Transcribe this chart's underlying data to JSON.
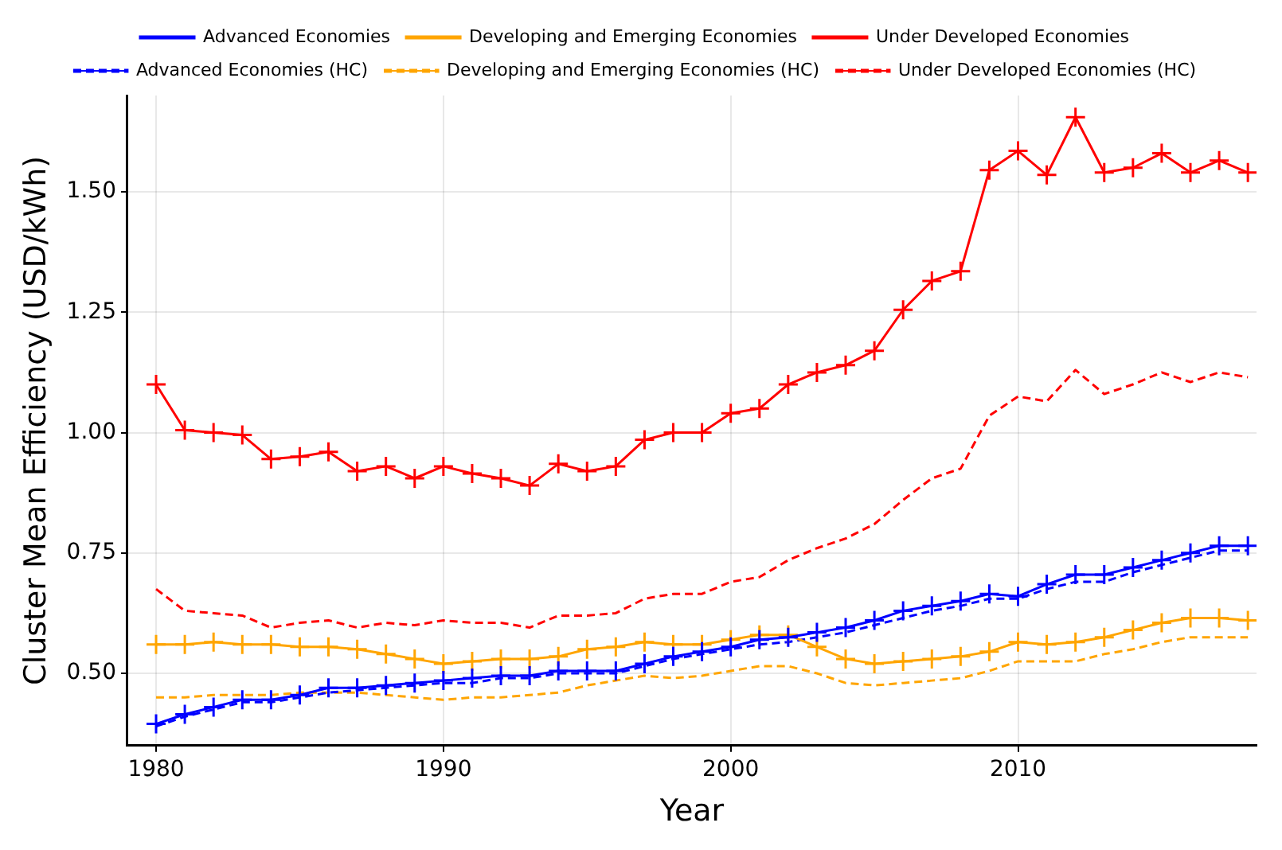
{
  "chart_data": {
    "type": "line",
    "xlabel": "Year",
    "ylabel": "Cluster Mean Efficiency (USD/kWh)",
    "x": [
      1980,
      1981,
      1982,
      1983,
      1984,
      1985,
      1986,
      1987,
      1988,
      1989,
      1990,
      1991,
      1992,
      1993,
      1994,
      1995,
      1996,
      1997,
      1998,
      1999,
      2000,
      2001,
      2002,
      2003,
      2004,
      2005,
      2006,
      2007,
      2008,
      2009,
      2010,
      2011,
      2012,
      2013,
      2014,
      2015,
      2016,
      2017,
      2018
    ],
    "xlim": [
      1979,
      2018.3
    ],
    "xticks": [
      1980,
      1990,
      2000,
      2010
    ],
    "ylim": [
      0.35,
      1.7
    ],
    "yticks": [
      {
        "value": 0.5,
        "label": "0.50"
      },
      {
        "value": 0.75,
        "label": "0.75"
      },
      {
        "value": 1.0,
        "label": "1.00"
      },
      {
        "value": 1.25,
        "label": "1.25"
      },
      {
        "value": 1.5,
        "label": "1.50"
      }
    ],
    "grid": true,
    "legend": "top",
    "series": [
      {
        "name": "Advanced Economies",
        "color": "#0000ff",
        "marker": "cross",
        "line_style": "solid",
        "values": [
          0.395,
          0.415,
          0.43,
          0.445,
          0.445,
          0.455,
          0.47,
          0.47,
          0.475,
          0.48,
          0.485,
          0.49,
          0.495,
          0.495,
          0.505,
          0.505,
          0.505,
          0.52,
          0.535,
          0.545,
          0.555,
          0.57,
          0.575,
          0.585,
          0.595,
          0.61,
          0.63,
          0.64,
          0.65,
          0.665,
          0.66,
          0.685,
          0.705,
          0.705,
          0.72,
          0.735,
          0.75,
          0.765,
          0.765
        ]
      },
      {
        "name": "Developing and Emerging Economies",
        "color": "#ffa500",
        "marker": "cross",
        "line_style": "solid",
        "values": [
          0.56,
          0.56,
          0.565,
          0.56,
          0.56,
          0.555,
          0.555,
          0.55,
          0.54,
          0.53,
          0.52,
          0.525,
          0.53,
          0.53,
          0.535,
          0.55,
          0.555,
          0.565,
          0.56,
          0.56,
          0.57,
          0.58,
          0.58,
          0.555,
          0.53,
          0.52,
          0.525,
          0.53,
          0.535,
          0.545,
          0.565,
          0.56,
          0.565,
          0.575,
          0.59,
          0.605,
          0.615,
          0.615,
          0.61
        ]
      },
      {
        "name": "Under Developed Economies",
        "color": "#ff0000",
        "marker": "cross",
        "line_style": "solid",
        "values": [
          1.1,
          1.005,
          1.0,
          0.995,
          0.945,
          0.95,
          0.96,
          0.92,
          0.93,
          0.905,
          0.93,
          0.915,
          0.905,
          0.89,
          0.935,
          0.92,
          0.93,
          0.985,
          1.0,
          1.0,
          1.04,
          1.05,
          1.1,
          1.125,
          1.14,
          1.17,
          1.255,
          1.315,
          1.335,
          1.545,
          1.585,
          1.535,
          1.655,
          1.54,
          1.55,
          1.58,
          1.54,
          1.565,
          1.54
        ]
      },
      {
        "name": "Advanced Economies (HC)",
        "color": "#0000ff",
        "marker": "none",
        "line_style": "dashed",
        "values": [
          0.39,
          0.41,
          0.425,
          0.44,
          0.44,
          0.45,
          0.46,
          0.465,
          0.47,
          0.475,
          0.48,
          0.48,
          0.49,
          0.49,
          0.5,
          0.5,
          0.5,
          0.515,
          0.53,
          0.54,
          0.55,
          0.56,
          0.565,
          0.575,
          0.585,
          0.6,
          0.615,
          0.63,
          0.64,
          0.655,
          0.655,
          0.675,
          0.69,
          0.69,
          0.71,
          0.725,
          0.74,
          0.755,
          0.755
        ]
      },
      {
        "name": "Developing and Emerging Economies (HC)",
        "color": "#ffa500",
        "marker": "none",
        "line_style": "dashed",
        "values": [
          0.45,
          0.45,
          0.455,
          0.455,
          0.455,
          0.46,
          0.46,
          0.46,
          0.455,
          0.45,
          0.445,
          0.45,
          0.45,
          0.455,
          0.46,
          0.475,
          0.485,
          0.495,
          0.49,
          0.495,
          0.505,
          0.515,
          0.515,
          0.5,
          0.48,
          0.475,
          0.48,
          0.485,
          0.49,
          0.505,
          0.525,
          0.525,
          0.525,
          0.54,
          0.55,
          0.565,
          0.575,
          0.575,
          0.575
        ]
      },
      {
        "name": "Under Developed Economies (HC)",
        "color": "#ff0000",
        "marker": "none",
        "line_style": "dashed",
        "values": [
          0.675,
          0.63,
          0.625,
          0.62,
          0.595,
          0.605,
          0.61,
          0.595,
          0.605,
          0.6,
          0.61,
          0.605,
          0.605,
          0.595,
          0.62,
          0.62,
          0.625,
          0.655,
          0.665,
          0.665,
          0.69,
          0.7,
          0.735,
          0.76,
          0.78,
          0.81,
          0.86,
          0.905,
          0.925,
          1.035,
          1.075,
          1.065,
          1.13,
          1.08,
          1.1,
          1.125,
          1.105,
          1.125,
          1.115
        ]
      }
    ]
  }
}
